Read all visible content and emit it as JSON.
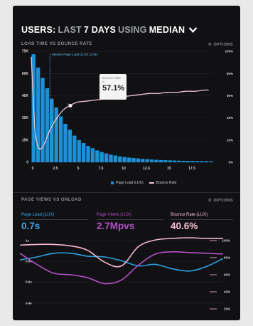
{
  "header": {
    "title_parts": [
      "USERS:",
      "LAST",
      "7 DAYS",
      "USING",
      "MEDIAN"
    ]
  },
  "load_section": {
    "label": "LOAD TIME VS BOUNCE RATE",
    "options_label": "OPTIONS"
  },
  "tooltip": {
    "label": "Bounce Rate",
    "sub": "in",
    "value": "57.1%"
  },
  "median_label": "Median Page Load (LUX): 2.05s",
  "legend": {
    "bars": "Page Load (LUX)",
    "line": "Bounce Rate"
  },
  "views_section": {
    "label": "PAGE VIEWS VS ONLOAD",
    "options_label": "OPTIONS"
  },
  "stats": [
    {
      "label": "Page Load (LUX)",
      "value": "0.7s",
      "color": "#3aa8ec"
    },
    {
      "label": "Page Views (LUX)",
      "value": "2.7Mpvs",
      "color": "#b64fc8"
    },
    {
      "label": "Bounce Rate (LUX)",
      "value": "40.6%",
      "color": "#f6c0d2"
    }
  ],
  "colors": {
    "bar": "#1e90d8",
    "bounce_line": "#f2c4d4",
    "load_line": "#2a9fe0",
    "views_line": "#b64fc8",
    "bounce_line2": "#f6b8cc"
  },
  "chart_data": [
    {
      "type": "bar",
      "x": [
        0.0,
        0.5,
        1.0,
        1.5,
        2.0,
        2.5,
        3.0,
        3.5,
        4.0,
        4.5,
        5.0,
        5.5,
        6.0,
        6.5,
        7.0,
        7.5,
        8.0,
        8.5,
        9.0,
        9.5,
        10.0,
        10.5,
        11.0,
        11.5,
        12.0,
        12.5,
        13.0,
        13.5,
        14.0,
        14.5,
        15.0,
        15.5,
        16.0,
        16.5,
        17.0,
        17.5,
        18.0,
        18.5,
        19.0,
        19.5
      ],
      "values": [
        73,
        64,
        57,
        50,
        43,
        37,
        31,
        26,
        22,
        18,
        15,
        13,
        11,
        9.5,
        8,
        7,
        6,
        5.2,
        4.6,
        4,
        3.6,
        3.2,
        2.9,
        2.6,
        2.3,
        2.1,
        1.9,
        1.7,
        1.5,
        1.4,
        1.3,
        1.2,
        1.1,
        1,
        0.95,
        0.9,
        0.85,
        0.8,
        0.75,
        0.7
      ],
      "ylim": [
        0,
        75
      ],
      "yticks": [
        "0",
        "15K",
        "30K",
        "45K",
        "60K",
        "75K"
      ],
      "xticks": [
        "0",
        "2.5",
        "5",
        "7.5",
        "10",
        "12.5",
        "15",
        "17.5"
      ],
      "median_x": 2.05,
      "series": [
        {
          "name": "Bounce Rate",
          "type": "line",
          "x": [
            0.0,
            0.2,
            0.4,
            0.6,
            0.8,
            1.0,
            1.2,
            1.5,
            2.0,
            2.5,
            3.0,
            3.5,
            4.0,
            5.0,
            6.0,
            7.0,
            8.0,
            9.0,
            10.0,
            11.0,
            12.0,
            13.0,
            14.0,
            15.0,
            16.0,
            17.0,
            18.0,
            19.0,
            19.5
          ],
          "y": [
            95,
            60,
            30,
            18,
            13,
            12,
            13,
            18,
            28,
            36,
            42,
            47,
            50,
            54,
            55,
            56,
            57,
            58,
            59,
            60,
            61,
            62,
            62,
            63,
            63,
            64,
            64,
            65,
            65
          ],
          "ylim": [
            0,
            100
          ],
          "yticks": [
            "0%",
            "20%",
            "40%",
            "60%",
            "80%",
            "100%"
          ]
        }
      ],
      "legend": "bottom"
    },
    {
      "type": "line",
      "yticks_left": [
        "1s",
        "0.8s",
        "0.6s",
        "0.4s"
      ],
      "yticks_right": [
        "100%",
        "80%",
        "60%",
        "40%",
        "20%"
      ],
      "series": [
        {
          "name": "Page Load (LUX)",
          "x": [
            0,
            1,
            2,
            3,
            4,
            5,
            6,
            7,
            8,
            9,
            10,
            11,
            12
          ],
          "y": [
            0.7,
            0.74,
            0.79,
            0.79,
            0.75,
            0.74,
            0.69,
            0.62,
            0.64,
            0.58,
            0.55,
            0.61,
            0.72
          ]
        },
        {
          "name": "Page Views (LUX)",
          "x": [
            0,
            1,
            2,
            3,
            4,
            5,
            6,
            7,
            8,
            9,
            10,
            11,
            12
          ],
          "y": [
            0.79,
            0.64,
            0.52,
            0.5,
            0.46,
            0.38,
            0.43,
            0.63,
            0.78,
            0.81,
            0.8,
            0.79,
            0.78
          ]
        },
        {
          "name": "Bounce Rate (LUX)",
          "x": [
            0,
            1,
            2,
            3,
            4,
            5,
            6,
            7,
            8,
            9,
            10,
            11,
            12
          ],
          "y": [
            0.9,
            0.91,
            0.91,
            0.89,
            0.83,
            0.67,
            0.62,
            0.88,
            0.97,
            0.99,
            1.0,
            0.99,
            0.99
          ]
        }
      ]
    }
  ]
}
